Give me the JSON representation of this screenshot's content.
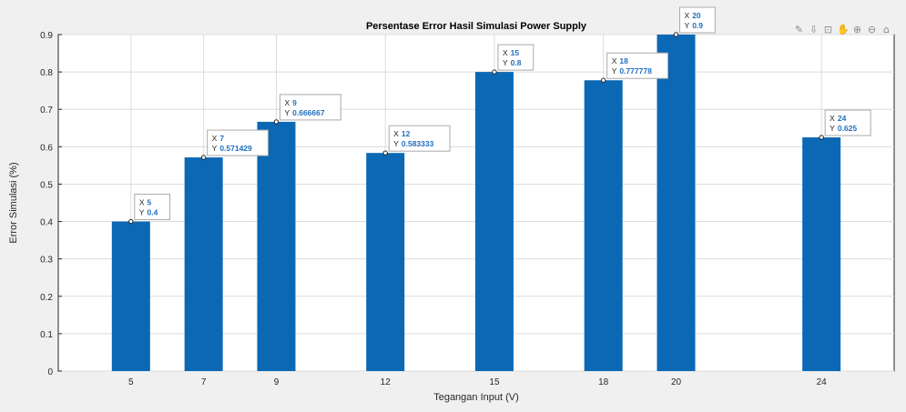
{
  "toolbar": {
    "icons": [
      {
        "name": "brush-icon",
        "glyph": "✎"
      },
      {
        "name": "export-icon",
        "glyph": "⇩"
      },
      {
        "name": "datatip-icon",
        "glyph": "⊡"
      },
      {
        "name": "pan-icon",
        "glyph": "✋"
      },
      {
        "name": "zoom-in-icon",
        "glyph": "⊕"
      },
      {
        "name": "zoom-out-icon",
        "glyph": "⊖"
      },
      {
        "name": "home-icon",
        "glyph": "⌂"
      }
    ]
  },
  "chart_data": {
    "type": "bar",
    "title": "Persentase Error Hasil Simulasi Power Supply",
    "xlabel": "Tegangan Input (V)",
    "ylabel": "Error Simulasi (%)",
    "x": [
      5,
      7,
      9,
      12,
      15,
      18,
      20,
      24
    ],
    "tick_labels": [
      "5",
      "7",
      "9",
      "12",
      "15",
      "18",
      "20",
      "24"
    ],
    "values": [
      0.4,
      0.571429,
      0.666667,
      0.583333,
      0.8,
      0.777778,
      0.9,
      0.625
    ],
    "xlim": [
      3,
      26
    ],
    "ylim": [
      0,
      0.9
    ],
    "yticks": [
      "0",
      "0.1",
      "0.2",
      "0.3",
      "0.4",
      "0.5",
      "0.6",
      "0.7",
      "0.8",
      "0.9"
    ],
    "grid": true,
    "bar_color": "#0b68b4",
    "datatips": [
      {
        "x": "5",
        "y": "0.4"
      },
      {
        "x": "7",
        "y": "0.571429"
      },
      {
        "x": "9",
        "y": "0.666667"
      },
      {
        "x": "12",
        "y": "0.583333"
      },
      {
        "x": "15",
        "y": "0.8"
      },
      {
        "x": "18",
        "y": "0.777778"
      },
      {
        "x": "20",
        "y": "0.9"
      },
      {
        "x": "24",
        "y": "0.625"
      }
    ],
    "datatip_prefix_x": "X",
    "datatip_prefix_y": "Y"
  }
}
